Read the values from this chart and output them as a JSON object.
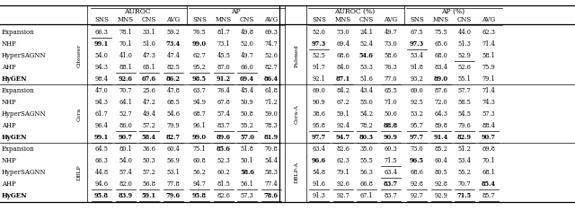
{
  "row_groups": [
    {
      "dataset_left": "Citeseer",
      "dataset_right": "Pubmed",
      "methods": [
        "Expansion",
        "NHP",
        "HyperSAGNN",
        "AHP",
        "HyGEN"
      ],
      "left_data": [
        [
          "66.3",
          "78.1",
          "33.1",
          "59.2",
          "76.5",
          "81.7",
          "49.8",
          "69.3"
        ],
        [
          "99.1",
          "70.1",
          "51.0",
          "73.4",
          "99.0",
          "73.1",
          "52.0",
          "74.7"
        ],
        [
          "54.0",
          "41.0",
          "47.3",
          "47.4",
          "62.7",
          "45.5",
          "49.7",
          "52.6"
        ],
        [
          "94.3",
          "88.1",
          "65.1",
          "82.5",
          "95.2",
          "87.0",
          "66.0",
          "82.7"
        ],
        [
          "98.4",
          "92.6",
          "67.6",
          "86.2",
          "98.5",
          "91.2",
          "69.4",
          "86.4"
        ]
      ],
      "right_data": [
        [
          "52.0",
          "73.0",
          "24.1",
          "49.7",
          "67.5",
          "75.5",
          "44.0",
          "62.3"
        ],
        [
          "97.3",
          "69.4",
          "52.4",
          "73.0",
          "97.3",
          "65.6",
          "51.3",
          "71.4"
        ],
        [
          "52.5",
          "68.6",
          "54.6",
          "58.6",
          "53.4",
          "68.0",
          "52.9",
          "58.1"
        ],
        [
          "91.7",
          "84.0",
          "53.3",
          "76.3",
          "91.8",
          "83.4",
          "52.6",
          "75.9"
        ],
        [
          "92.1",
          "87.1",
          "51.6",
          "77.0",
          "93.2",
          "89.0",
          "55.1",
          "79.1"
        ]
      ]
    },
    {
      "dataset_left": "Cora",
      "dataset_right": "Cora-A",
      "methods": [
        "Expansion",
        "NHP",
        "HyperSAGNN",
        "AHP",
        "HyGEN"
      ],
      "left_data": [
        [
          "47.0",
          "70.7",
          "25.6",
          "47.8",
          "63.7",
          "76.4",
          "45.4",
          "61.8"
        ],
        [
          "94.3",
          "64.1",
          "47.2",
          "68.5",
          "94.9",
          "67.8",
          "50.9",
          "71.2"
        ],
        [
          "61.7",
          "52.7",
          "49.4",
          "54.6",
          "68.7",
          "57.4",
          "50.8",
          "59.0"
        ],
        [
          "96.4",
          "86.0",
          "57.2",
          "79.9",
          "96.1",
          "83.7",
          "55.2",
          "78.3"
        ],
        [
          "99.1",
          "90.7",
          "58.4",
          "82.7",
          "99.0",
          "89.6",
          "57.0",
          "81.9"
        ]
      ],
      "right_data": [
        [
          "69.0",
          "84.2",
          "43.4",
          "65.5",
          "69.0",
          "87.6",
          "57.7",
          "71.4"
        ],
        [
          "90.9",
          "67.2",
          "55.0",
          "71.0",
          "92.5",
          "72.0",
          "58.5",
          "74.3"
        ],
        [
          "38.6",
          "59.1",
          "54.2",
          "50.6",
          "53.2",
          "64.3",
          "54.5",
          "57.3"
        ],
        [
          "95.8",
          "92.4",
          "78.2",
          "88.8",
          "95.7",
          "89.8",
          "79.6",
          "88.4"
        ],
        [
          "97.7",
          "94.7",
          "80.3",
          "90.9",
          "97.7",
          "91.4",
          "82.9",
          "90.7"
        ]
      ]
    },
    {
      "dataset_left": "DBLP",
      "dataset_right": "DBLP-A",
      "methods": [
        "Expansion",
        "NHP",
        "HyperSAGNN",
        "AHP",
        "HyGEN"
      ],
      "left_data": [
        [
          "64.5",
          "80.1",
          "36.6",
          "60.4",
          "75.1",
          "85.6",
          "51.8",
          "70.8"
        ],
        [
          "66.3",
          "54.0",
          "50.3",
          "56.9",
          "60.8",
          "52.3",
          "50.1",
          "54.4"
        ],
        [
          "44.8",
          "57.4",
          "57.2",
          "53.1",
          "56.2",
          "60.2",
          "58.6",
          "58.3"
        ],
        [
          "94.6",
          "82.0",
          "56.8",
          "77.8",
          "94.7",
          "81.5",
          "56.1",
          "77.4"
        ],
        [
          "95.8",
          "83.9",
          "59.1",
          "79.6",
          "95.8",
          "82.6",
          "57.3",
          "78.6"
        ]
      ],
      "right_data": [
        [
          "63.4",
          "82.6",
          "35.0",
          "60.3",
          "73.0",
          "85.2",
          "51.2",
          "69.8"
        ],
        [
          "96.6",
          "62.3",
          "55.5",
          "71.5",
          "96.5",
          "60.4",
          "53.4",
          "70.1"
        ],
        [
          "54.8",
          "79.1",
          "56.3",
          "63.4",
          "68.6",
          "80.5",
          "55.2",
          "68.1"
        ],
        [
          "91.6",
          "92.6",
          "66.8",
          "83.7",
          "92.8",
          "92.8",
          "70.7",
          "85.4"
        ],
        [
          "91.3",
          "92.7",
          "67.1",
          "83.7",
          "92.7",
          "92.9",
          "71.5",
          "85.7"
        ]
      ]
    }
  ]
}
